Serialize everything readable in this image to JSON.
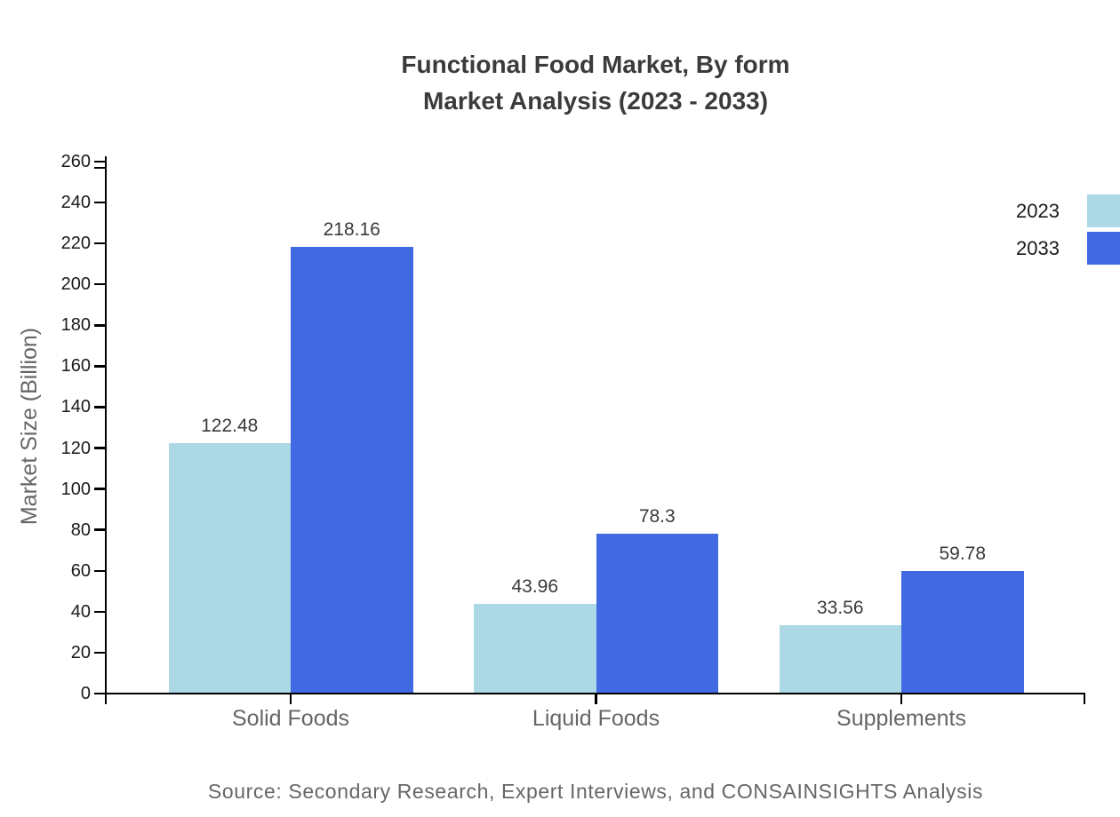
{
  "title": {
    "line1": "Functional Food Market, By form",
    "line2": "Market Analysis (2023 - 2033)"
  },
  "source": {
    "text": "Source: Secondary Research, Expert Interviews, and CONSAINSIGHTS Analysis"
  },
  "colors": {
    "series_2023": "#ADD8E6",
    "series_2033": "#4169E1",
    "axis": "#000000",
    "tick_label": "#1a1a1a",
    "category_label": "#666666",
    "value_label": "#3a3a3a",
    "title": "#3b3b3b",
    "source": "#666666",
    "ylabel": "#666666",
    "legend_label": "#1a1a1a",
    "background": "#ffffff"
  },
  "chart_data": {
    "type": "bar",
    "title": "Functional Food Market, By form — Market Analysis (2023 - 2033)",
    "categories": [
      "Solid Foods",
      "Liquid Foods",
      "Supplements"
    ],
    "series": [
      {
        "name": "2023",
        "color": "#ADD8E6",
        "values": [
          122.48,
          43.96,
          33.56
        ]
      },
      {
        "name": "2033",
        "color": "#4169E1",
        "values": [
          218.16,
          78.3,
          59.78
        ]
      }
    ],
    "xlabel": "",
    "ylabel": "Market Size (Billion)",
    "ylim": [
      0,
      260
    ],
    "ytick_step": 20,
    "grid": false,
    "legend_position": "top-right",
    "value_labels_shown": true
  }
}
